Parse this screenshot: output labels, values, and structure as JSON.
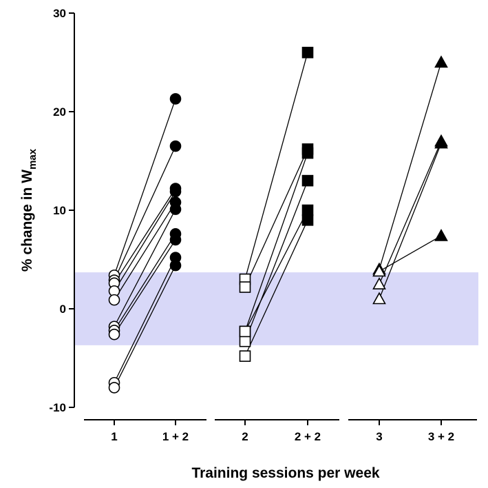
{
  "chart_data": {
    "type": "scatter",
    "xlabel": "Training sessions per week",
    "ylabel_main": "% change in W",
    "ylabel_sub": "max",
    "ylim": [
      -10,
      30
    ],
    "y_ticks": [
      -10,
      0,
      10,
      20,
      30
    ],
    "shaded_band": [
      -3.7,
      3.7
    ],
    "shaded_band_color": "#d8d8f8",
    "categories": [
      "1",
      "1 + 2",
      "2",
      "2 + 2",
      "3",
      "3 + 2"
    ],
    "groups": [
      {
        "marker": "circle",
        "pre_category": "1",
        "post_category": "1 + 2",
        "pairs": [
          [
            3.4,
            21.3
          ],
          [
            2.9,
            16.5
          ],
          [
            2.6,
            12.2
          ],
          [
            1.8,
            11.9
          ],
          [
            0.9,
            10.8
          ],
          [
            -1.8,
            10.1
          ],
          [
            -2.2,
            7.6
          ],
          [
            -2.6,
            7.0
          ],
          [
            -7.5,
            5.2
          ],
          [
            -8.0,
            4.4
          ]
        ]
      },
      {
        "marker": "square",
        "pre_category": "2",
        "post_category": "2 + 2",
        "pairs": [
          [
            3.0,
            26.0
          ],
          [
            2.2,
            16.2
          ],
          [
            -2.3,
            15.8
          ],
          [
            -3.3,
            13.0
          ],
          [
            -2.3,
            10.0
          ],
          [
            -4.8,
            9.0
          ]
        ]
      },
      {
        "marker": "triangle",
        "pre_category": "3",
        "post_category": "3 + 2",
        "pairs": [
          [
            4.0,
            25.0
          ],
          [
            2.5,
            17.0
          ],
          [
            1.0,
            16.8
          ],
          [
            3.8,
            7.4
          ]
        ]
      }
    ]
  }
}
